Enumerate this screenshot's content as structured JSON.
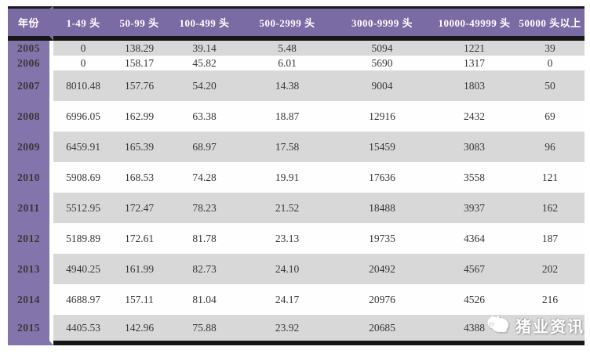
{
  "chart_data": {
    "type": "table",
    "columns": [
      "年份",
      "1-49 头",
      "50-99 头",
      "100-499 头",
      "500-2999 头",
      "3000-9999 头",
      "10000-49999 头",
      "50000 头以上"
    ],
    "rows": [
      {
        "year": "2005",
        "values": [
          "0",
          "138.29",
          "39.14",
          "5.48",
          "5094",
          "1221",
          "39"
        ]
      },
      {
        "year": "2006",
        "values": [
          "0",
          "158.17",
          "45.82",
          "6.01",
          "5690",
          "1317",
          "0"
        ]
      },
      {
        "year": "2007",
        "values": [
          "8010.48",
          "157.76",
          "54.20",
          "14.38",
          "9004",
          "1803",
          "50"
        ]
      },
      {
        "year": "2008",
        "values": [
          "6996.05",
          "162.99",
          "63.38",
          "18.87",
          "12916",
          "2432",
          "69"
        ]
      },
      {
        "year": "2009",
        "values": [
          "6459.91",
          "165.39",
          "68.97",
          "17.58",
          "15459",
          "3083",
          "96"
        ]
      },
      {
        "year": "2010",
        "values": [
          "5908.69",
          "168.53",
          "74.28",
          "19.91",
          "17636",
          "3558",
          "121"
        ]
      },
      {
        "year": "2011",
        "values": [
          "5512.95",
          "172.47",
          "78.23",
          "21.52",
          "18488",
          "3937",
          "162"
        ]
      },
      {
        "year": "2012",
        "values": [
          "5189.89",
          "172.61",
          "81.78",
          "23.13",
          "19735",
          "4364",
          "187"
        ]
      },
      {
        "year": "2013",
        "values": [
          "4940.25",
          "161.99",
          "82.73",
          "24.10",
          "20492",
          "4567",
          "202"
        ]
      },
      {
        "year": "2014",
        "values": [
          "4688.97",
          "157.11",
          "81.04",
          "24.17",
          "20976",
          "4526",
          "216"
        ]
      },
      {
        "year": "2015",
        "values": [
          "4405.53",
          "142.96",
          "75.88",
          "23.92",
          "20685",
          "4388",
          ""
        ]
      }
    ]
  },
  "watermark": {
    "label": "猪业资讯",
    "icon": "pig-icon"
  },
  "colors": {
    "header_purple": "#7b6ba4",
    "year_column_purple": "#8474ac",
    "row_gray": "#d8d8d8",
    "row_white": "#fefefe",
    "border_black": "#171717",
    "header_text": "#ffffff",
    "data_text": "#373737"
  }
}
